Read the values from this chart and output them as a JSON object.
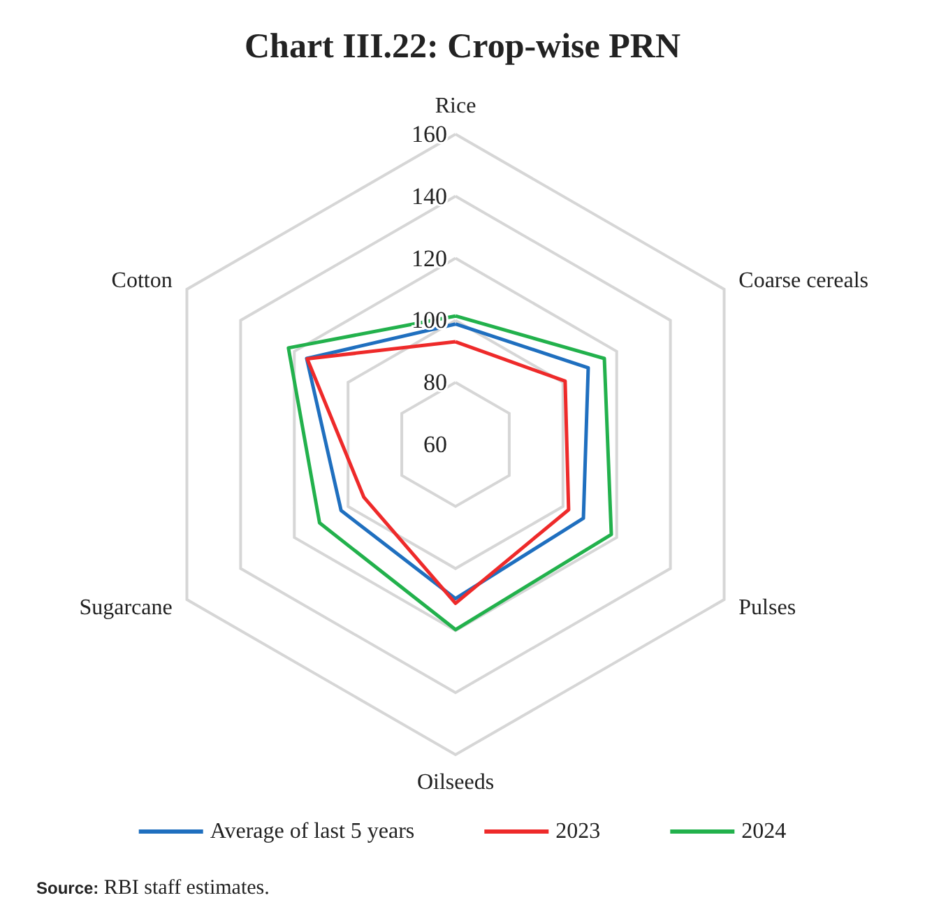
{
  "chart_data": {
    "type": "radar",
    "title": "Chart III.22: Crop-wise PRN",
    "categories": [
      "Rice",
      "Coarse cereals",
      "Pulses",
      "Oilseeds",
      "Sugarcane",
      "Cotton"
    ],
    "series": [
      {
        "name": "Average of last 5 years",
        "color": "#1f6fbf",
        "values": [
          98.8,
          109.4,
          107.6,
          109.7,
          102.6,
          115.4
        ]
      },
      {
        "name": "2023",
        "color": "#ee2a2a",
        "values": [
          93.1,
          100.8,
          102.1,
          111.2,
          94.1,
          115.2
        ]
      },
      {
        "name": "2024",
        "color": "#22b14c",
        "values": [
          101.4,
          115.4,
          118,
          119.7,
          110.6,
          122.2
        ]
      }
    ],
    "ylim": [
      60,
      160
    ],
    "yticks": [
      60,
      80,
      100,
      120,
      140,
      160
    ],
    "grid": true,
    "legend": "bottom",
    "marker": "none",
    "annotations": [
      "Source: RBI staff estimates."
    ]
  }
}
